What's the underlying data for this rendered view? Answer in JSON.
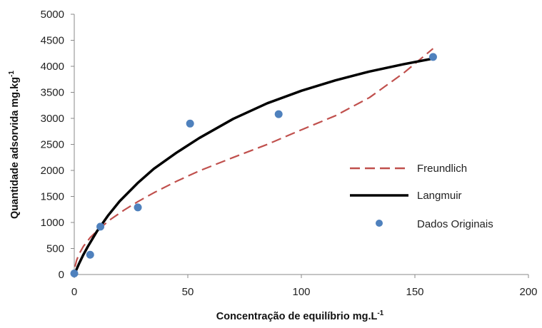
{
  "chart_data": {
    "type": "scatter",
    "xlabel": "Concentração de equilíbrio mg.L",
    "xlabel_sup": "-1",
    "ylabel": "Quantidade adsorvida  mg.kg",
    "ylabel_sup": "-1",
    "xlim": [
      0,
      200
    ],
    "ylim": [
      0,
      5000
    ],
    "x_ticks": [
      "0",
      "50",
      "100",
      "150",
      "200"
    ],
    "y_ticks": [
      "0",
      "500",
      "1000",
      "1500",
      "2000",
      "2500",
      "3000",
      "3500",
      "4000",
      "4500",
      "5000"
    ],
    "grid": false,
    "legend_position": "right",
    "series": [
      {
        "name": "Freundlich",
        "kind": "line",
        "style": "dashed",
        "color": "#c0504d",
        "x": [
          0.3,
          1,
          2,
          4,
          7,
          11,
          16,
          22,
          28,
          35,
          45,
          55,
          70,
          85,
          100,
          115,
          130,
          145,
          158
        ],
        "y": [
          150,
          270,
          385,
          540,
          710,
          880,
          1060,
          1240,
          1400,
          1570,
          1790,
          1990,
          2250,
          2500,
          2780,
          3050,
          3400,
          3870,
          4340
        ]
      },
      {
        "name": "Langmuir",
        "kind": "line",
        "style": "solid",
        "color": "#000000",
        "x": [
          0,
          1,
          2,
          4,
          6,
          10,
          15,
          20,
          28,
          35,
          45,
          55,
          70,
          85,
          100,
          115,
          130,
          145,
          158
        ],
        "y": [
          0,
          100,
          200,
          380,
          540,
          830,
          1140,
          1410,
          1760,
          2030,
          2340,
          2620,
          2990,
          3290,
          3530,
          3730,
          3900,
          4040,
          4150
        ]
      },
      {
        "name": "Dados Originais",
        "kind": "markers",
        "color": "#4f81bd",
        "x": [
          0,
          7,
          11.5,
          28,
          51,
          90,
          158
        ],
        "y": [
          20,
          380,
          920,
          1290,
          2900,
          3080,
          4180
        ]
      }
    ]
  }
}
